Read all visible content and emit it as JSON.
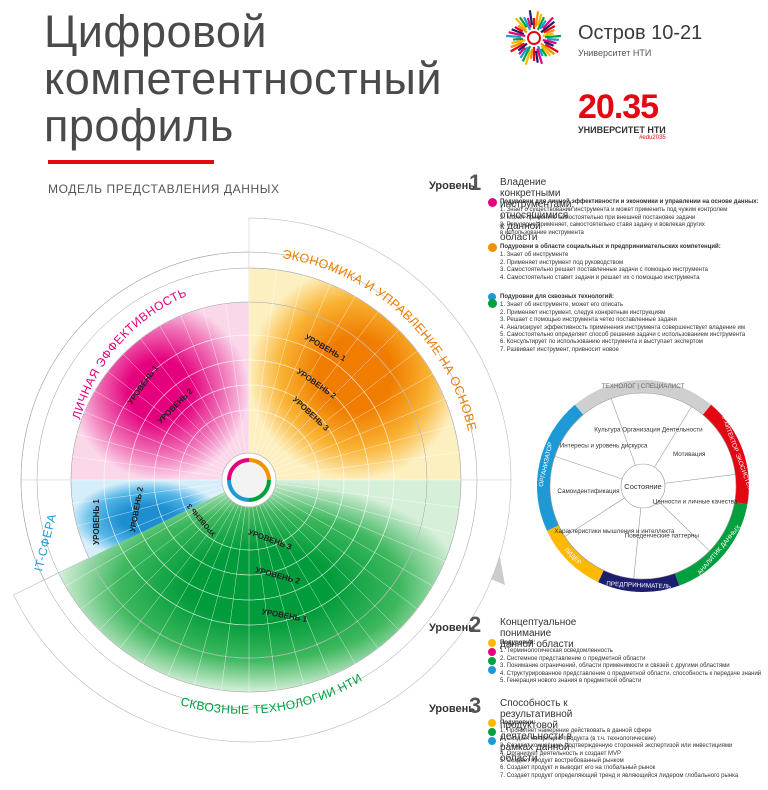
{
  "title": [
    "Цифровой",
    "компетентностный",
    "профиль"
  ],
  "subtitle": "МОДЕЛЬ ПРЕДСТАВЛЕНИЯ ДАННЫХ",
  "logo_ostrov": {
    "name": "Остров 10-21",
    "sub": "Университет НТИ"
  },
  "logo_2035": {
    "big": "20.35",
    "uni": "УНИВЕРСИТЕТ НТИ",
    "tag": "#edu2035"
  },
  "colors": {
    "pink": "#e5007e",
    "orange": "#f39200",
    "blue": "#1d9ad6",
    "green": "#00a03e",
    "purple": "#1e1e6e",
    "red": "#e30613",
    "yellow": "#fbb900"
  },
  "sectors": {
    "personal": "ЛИЧНАЯ ЭФФЕКТИВНОСТЬ",
    "economy": "ЭКОНОМИКА И УПРАВЛЕНИЕ НА ОСНОВЕ ДАННЫХ",
    "it": "IT-СФЕРА",
    "tech": "СКВОЗНЫЕ ТЕХНОЛОГИИ НТИ"
  },
  "ring_labels": {
    "l1": "УРОВЕНЬ 1",
    "l2": "УРОВЕНЬ 2",
    "l3": "УРОВЕНЬ 3"
  },
  "small_wheel": {
    "center": "Состояние",
    "inner": [
      "Культура Организация Деятельности",
      "Мотивация",
      "Ценности и личные качества",
      "Поведенческие паттерны",
      "Характеристики мышления и интеллекта",
      "Самоидентификация",
      "Интересы и уровень дискурса"
    ],
    "outer": [
      "ТЕХНОЛОГ | СПЕЦИАЛИСТ",
      "АРХИТЕКТОР ЭКОСИСТЕМ",
      "АНАЛИТИК ДАННЫХ",
      "ПРЕДПРИНИМАТЕЛЬ",
      "ЛИДЕР",
      "ОРГАНИЗАТОР"
    ]
  },
  "level1": {
    "label": "Уровень",
    "num": "1",
    "head": [
      "Владение конкретными инструментами,",
      "относящимися к данной области"
    ],
    "blocks": [
      {
        "title": "Подуровни для личной эффективности и экономики и управлении на основе данных:",
        "items": [
          "1.  Знает о существовании инструмента и может применить под чужим контролем",
          "2.  Может применить самостоятельно при внешней постановке задачи",
          "3.  Регулярно применяет, самостоятельно ставя задачу и вовлекая других",
          "     в использование инструмента"
        ]
      },
      {
        "title": "Подуровни в области  социальных и предпринимательских компетенций:",
        "items": [
          "1. Знает об инструменте",
          "2. Применяет  инструмент под руководством",
          "3. Самостоятельно решает поставленные задачи с помощью инструмента",
          "4. Самостоятельно ставит  задачи и решает их с помощью инструмента"
        ]
      },
      {
        "title": "Подуровни для сквозных технологий:",
        "items": [
          "1. Знает об инструменте, может его описать",
          "2. Применяет инструмент, следуя конкретным инструкциям",
          "3. Решает с помощью инструмента четко поставленные задачи",
          "4. Анализирует эффективность применения инструмента совершенствует владение им",
          "5. Самостоятельно определяет способ решения задачи с использованием инструмента",
          "6. Консультирует по использованию инструмента и выступает экспертом",
          "7. Развивает инструмент, привносит новое"
        ]
      }
    ]
  },
  "level2": {
    "label": "Уровень",
    "num": "2",
    "head": [
      "Концептуальное",
      "понимание данной области"
    ],
    "title": "Подуровни:",
    "items": [
      "1.  Терминологическая осведомленность",
      "2.  Системное представление о предметной области",
      "3.  Понимание ограничений, области применимости и связей с другими областями",
      "4.  Структурированное представление о предметной области, способность к передаче знаний",
      "5.  Генерация нового знания в предметной области"
    ]
  },
  "level3": {
    "label": "Уровень",
    "num": "3",
    "head": [
      "Способность к результативной продуктовой",
      "деятельности в рамках данной области"
    ],
    "title": "Подуровни:",
    "items": [
      "1.  Проявляет намерение действовать в данной сфере",
      "2.  Создает концепцию продукта (в т.ч. технологические)",
      "3.  Создает концепцию, подтвержденную сторонней экспертизой или инвестициями",
      "4.  Организует деятельность и создает MVP",
      "5.  Создает продукт востребованный рынком",
      "6.  Создает продукт и выводит его на глобальный рынок",
      "7.  Создает продукт определяющий тренд и являющийся лидером глобального рынка"
    ]
  }
}
